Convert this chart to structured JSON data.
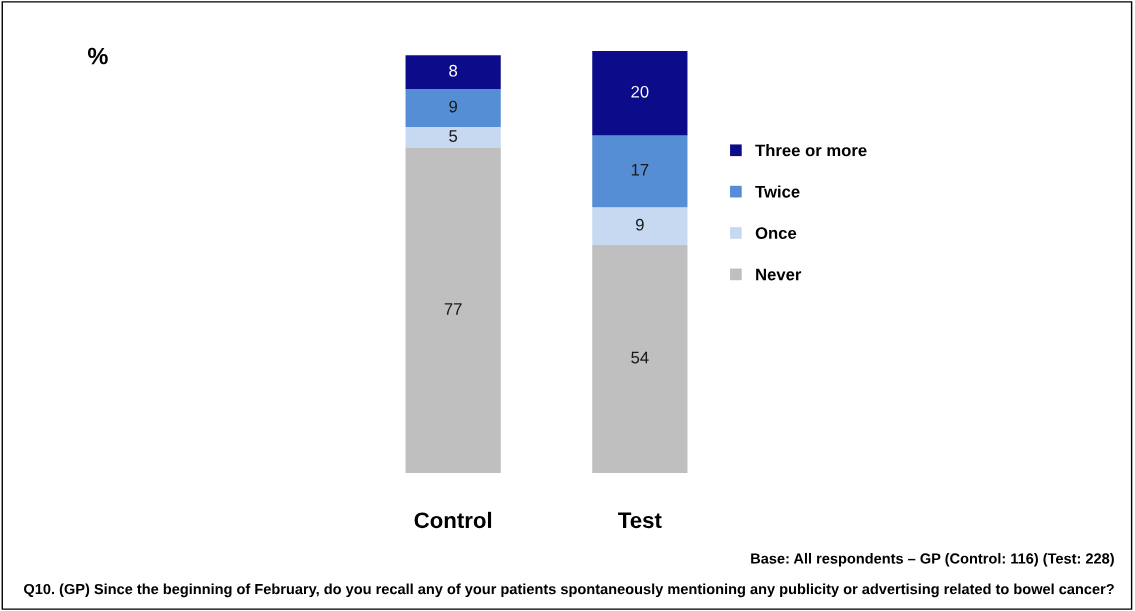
{
  "chart_data": {
    "type": "bar",
    "stacked": true,
    "categories": [
      "Control",
      "Test"
    ],
    "series": [
      {
        "name": "Never",
        "color": "#bfbfbf",
        "values": [
          77,
          54
        ]
      },
      {
        "name": "Once",
        "color": "#c6d9f1",
        "values": [
          5,
          9
        ]
      },
      {
        "name": "Twice",
        "color": "#558ed5",
        "values": [
          9,
          17
        ]
      },
      {
        "name": "Three or more",
        "color": "#0c0c8a",
        "values": [
          8,
          20
        ]
      }
    ],
    "data_labels": true,
    "legend": "right",
    "grid": false,
    "annotations": [
      "%",
      "Base: All respondents – GP (Control: 116) (Test: 228)",
      "Q10. (GP) Since the beginning of February, do you recall any of your patients spontaneously mentioning any publicity or advertising related to bowel cancer?"
    ]
  }
}
